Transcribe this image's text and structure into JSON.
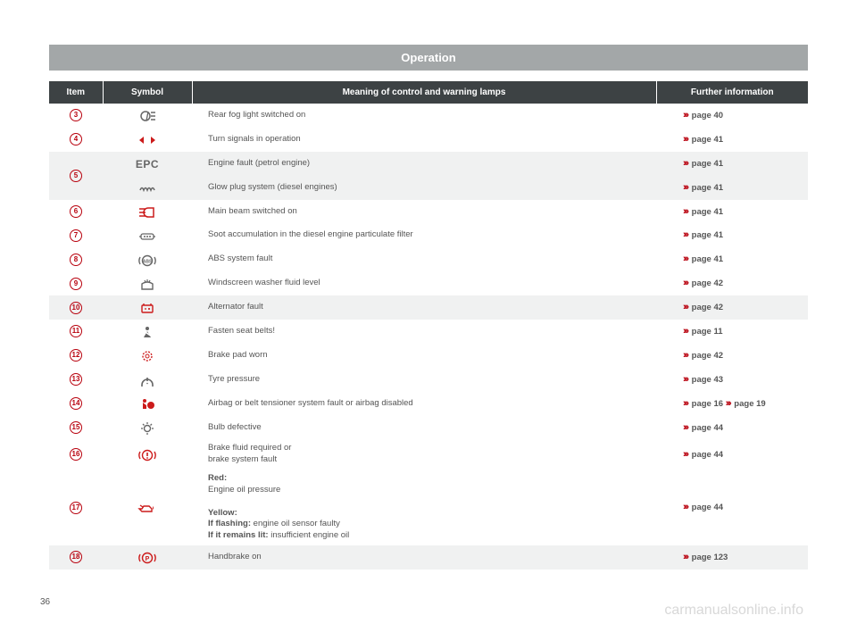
{
  "title": "Operation",
  "page_number": "36",
  "watermark": "carmanualsonline.info",
  "columns": {
    "item": "Item",
    "symbol": "Symbol",
    "meaning": "Meaning of control and warning lamps",
    "further": "Further information"
  },
  "chevron": "›››",
  "rows": [
    {
      "item": "3",
      "symbol": "rear-fog",
      "meaning": "Rear fog light switched on",
      "further": [
        "page 40"
      ],
      "alt": false
    },
    {
      "item": "4",
      "symbol": "turn-signals",
      "meaning": "Turn signals in operation",
      "further": [
        "page 41"
      ],
      "alt": false,
      "red": true
    },
    {
      "item": "5",
      "rowspan": 2,
      "symbol": "epc",
      "meaning": "Engine fault (petrol engine)",
      "further": [
        "page 41"
      ],
      "alt": true
    },
    {
      "continue": true,
      "symbol": "glow-plug",
      "meaning": "Glow plug system (diesel engines)",
      "further": [
        "page 41"
      ],
      "alt": true
    },
    {
      "item": "6",
      "symbol": "main-beam",
      "meaning": "Main beam switched on",
      "further": [
        "page 41"
      ],
      "alt": false,
      "red": true
    },
    {
      "item": "7",
      "symbol": "soot-filter",
      "meaning": "Soot accumulation in the diesel engine particulate filter",
      "further": [
        "page 41"
      ],
      "alt": false
    },
    {
      "item": "8",
      "symbol": "abs",
      "meaning": "ABS system fault",
      "further": [
        "page 41"
      ],
      "alt": false
    },
    {
      "item": "9",
      "symbol": "washer-fluid",
      "meaning": "Windscreen washer fluid level",
      "further": [
        "page 42"
      ],
      "alt": false
    },
    {
      "item": "10",
      "symbol": "alternator",
      "meaning": "Alternator fault",
      "further": [
        "page 42"
      ],
      "alt": true,
      "red": true
    },
    {
      "item": "11",
      "symbol": "seatbelt",
      "meaning": "Fasten seat belts!",
      "further": [
        "page 11"
      ],
      "alt": false
    },
    {
      "item": "12",
      "symbol": "brake-pad",
      "meaning": "Brake pad worn",
      "further": [
        "page 42"
      ],
      "alt": false,
      "red": true
    },
    {
      "item": "13",
      "symbol": "tyre-pressure",
      "meaning": "Tyre pressure",
      "further": [
        "page 43"
      ],
      "alt": false
    },
    {
      "item": "14",
      "symbol": "airbag",
      "meaning": "Airbag or belt tensioner system fault or airbag disabled",
      "further": [
        "page 16",
        "page 19"
      ],
      "alt": false,
      "red": true
    },
    {
      "item": "15",
      "symbol": "bulb",
      "meaning": "Bulb defective",
      "further": [
        "page 44"
      ],
      "alt": false
    },
    {
      "item": "16",
      "symbol": "brake-fluid",
      "meaning_html": "Brake fluid required or<br>brake system fault",
      "further": [
        "page 44"
      ],
      "alt": false,
      "red": true
    },
    {
      "item": "17",
      "symbol": "oil",
      "meaning_html": "<span class='bold'>Red:</span><br>Engine oil pressure<br><br><span class='bold'>Yellow:</span><br><span class='bold'>If flashing:</span> engine oil sensor faulty<br><span class='bold'>If it remains lit:</span> insufficient engine oil",
      "further": [
        "page 44"
      ],
      "alt": false,
      "red": true
    },
    {
      "item": "18",
      "symbol": "handbrake",
      "meaning": "Handbrake on",
      "further": [
        "page 123"
      ],
      "alt": true,
      "red": true
    }
  ]
}
